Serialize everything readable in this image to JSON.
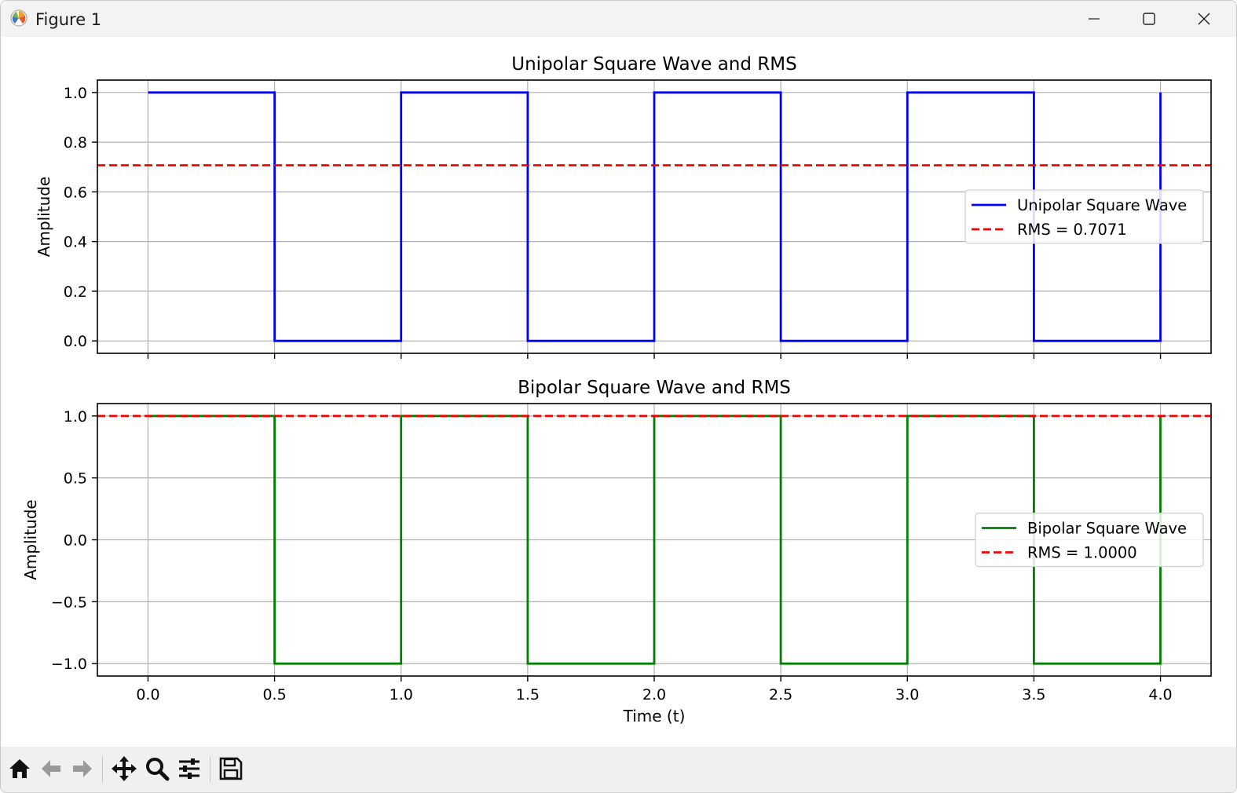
{
  "window": {
    "title": "Figure 1"
  },
  "toolbar": {
    "buttons": [
      {
        "name": "home-icon",
        "label": "Home"
      },
      {
        "name": "back-icon",
        "label": "Back"
      },
      {
        "name": "forward-icon",
        "label": "Forward"
      },
      {
        "name": "pan-icon",
        "label": "Pan"
      },
      {
        "name": "zoom-icon",
        "label": "Zoom"
      },
      {
        "name": "configure-subplots-icon",
        "label": "Configure subplots"
      },
      {
        "name": "save-icon",
        "label": "Save"
      }
    ]
  },
  "chart_data": [
    {
      "type": "line",
      "title": "Unipolar Square Wave and RMS",
      "xlabel": "",
      "ylabel": "Amplitude",
      "xlim": [
        -0.2,
        4.2
      ],
      "ylim": [
        -0.05,
        1.05
      ],
      "xticks": [
        0.0,
        0.5,
        1.0,
        1.5,
        2.0,
        2.5,
        3.0,
        3.5,
        4.0
      ],
      "xtick_labels": [],
      "yticks": [
        0.0,
        0.2,
        0.4,
        0.6,
        0.8,
        1.0
      ],
      "ytick_labels": [
        "0.0",
        "0.2",
        "0.4",
        "0.6",
        "0.8",
        "1.0"
      ],
      "grid": true,
      "legend": "center-right",
      "series": [
        {
          "name": "Unipolar Square Wave",
          "color": "#0000ff",
          "style": "solid",
          "x": [
            0.0,
            0.5,
            0.5,
            1.0,
            1.0,
            1.5,
            1.5,
            2.0,
            2.0,
            2.5,
            2.5,
            3.0,
            3.0,
            3.5,
            3.5,
            4.0,
            4.0
          ],
          "y": [
            1,
            1,
            0,
            0,
            1,
            1,
            0,
            0,
            1,
            1,
            0,
            0,
            1,
            1,
            0,
            0,
            1
          ]
        },
        {
          "name": "RMS = 0.7071",
          "color": "#ff0000",
          "style": "dashed",
          "hline": 0.7071
        }
      ]
    },
    {
      "type": "line",
      "title": "Bipolar Square Wave and RMS",
      "xlabel": "Time (t)",
      "ylabel": "Amplitude",
      "xlim": [
        -0.2,
        4.2
      ],
      "ylim": [
        -1.1,
        1.1
      ],
      "xticks": [
        0.0,
        0.5,
        1.0,
        1.5,
        2.0,
        2.5,
        3.0,
        3.5,
        4.0
      ],
      "xtick_labels": [
        "0.0",
        "0.5",
        "1.0",
        "1.5",
        "2.0",
        "2.5",
        "3.0",
        "3.5",
        "4.0"
      ],
      "yticks": [
        -1.0,
        -0.5,
        0.0,
        0.5,
        1.0
      ],
      "ytick_labels": [
        "−1.0",
        "−0.5",
        "0.0",
        "0.5",
        "1.0"
      ],
      "grid": true,
      "legend": "center-right",
      "series": [
        {
          "name": "Bipolar Square Wave",
          "color": "#008000",
          "style": "solid",
          "x": [
            0.0,
            0.5,
            0.5,
            1.0,
            1.0,
            1.5,
            1.5,
            2.0,
            2.0,
            2.5,
            2.5,
            3.0,
            3.0,
            3.5,
            3.5,
            4.0,
            4.0
          ],
          "y": [
            1,
            1,
            -1,
            -1,
            1,
            1,
            -1,
            -1,
            1,
            1,
            -1,
            -1,
            1,
            1,
            -1,
            -1,
            1
          ]
        },
        {
          "name": "RMS = 1.0000",
          "color": "#ff0000",
          "style": "dashed",
          "hline": 1.0
        }
      ]
    }
  ]
}
